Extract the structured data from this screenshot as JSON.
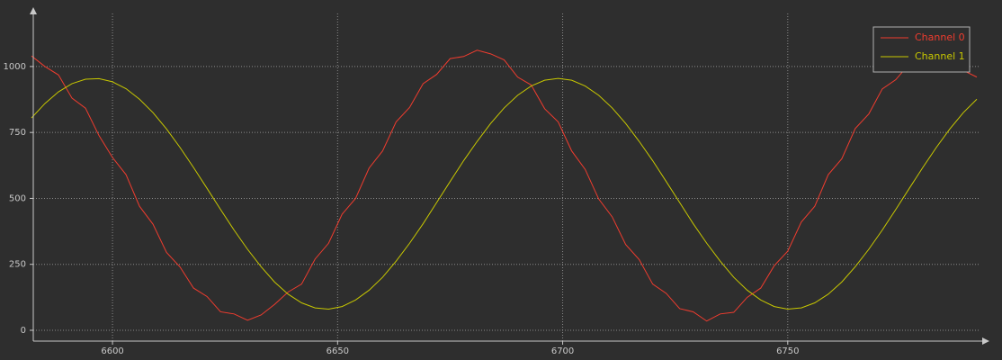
{
  "chart_data": {
    "type": "line",
    "x": [
      6582,
      6585,
      6588,
      6591,
      6594,
      6597,
      6600,
      6603,
      6606,
      6609,
      6612,
      6615,
      6618,
      6621,
      6624,
      6627,
      6630,
      6633,
      6636,
      6639,
      6642,
      6645,
      6648,
      6651,
      6654,
      6657,
      6660,
      6663,
      6666,
      6669,
      6672,
      6675,
      6678,
      6681,
      6684,
      6687,
      6690,
      6693,
      6696,
      6699,
      6702,
      6705,
      6708,
      6711,
      6714,
      6717,
      6720,
      6723,
      6726,
      6729,
      6732,
      6735,
      6738,
      6741,
      6744,
      6747,
      6750,
      6753,
      6756,
      6759,
      6762,
      6765,
      6768,
      6771,
      6774,
      6777,
      6780,
      6783,
      6786,
      6789,
      6792
    ],
    "series": [
      {
        "name": "Channel 0",
        "color": "#f03c2e",
        "values": [
          1040,
          1000,
          968,
          880,
          842,
          738,
          655,
          590,
          470,
          402,
          295,
          240,
          160,
          128,
          70,
          62,
          38,
          58,
          98,
          145,
          175,
          270,
          330,
          440,
          500,
          615,
          680,
          790,
          845,
          935,
          970,
          1030,
          1038,
          1062,
          1048,
          1025,
          960,
          930,
          840,
          790,
          680,
          610,
          498,
          430,
          325,
          268,
          175,
          140,
          82,
          70,
          35,
          62,
          68,
          125,
          160,
          245,
          300,
          410,
          470,
          590,
          650,
          765,
          820,
          915,
          950,
          1010,
          1020,
          1000,
          1008,
          985,
          960
        ]
      },
      {
        "name": "Channel 1",
        "color": "#c8c800",
        "values": [
          805,
          860,
          904,
          935,
          952,
          954,
          942,
          916,
          876,
          825,
          763,
          693,
          617,
          538,
          458,
          380,
          307,
          241,
          183,
          137,
          104,
          85,
          80,
          90,
          115,
          152,
          201,
          262,
          330,
          404,
          484,
          564,
          643,
          716,
          784,
          843,
          891,
          926,
          948,
          955,
          948,
          926,
          891,
          843,
          784,
          716,
          643,
          564,
          484,
          404,
          330,
          262,
          201,
          152,
          115,
          90,
          80,
          85,
          104,
          137,
          183,
          241,
          307,
          380,
          458,
          538,
          617,
          693,
          763,
          825,
          876
        ]
      }
    ],
    "xlim": [
      6582.4,
      6792.4
    ],
    "xticks": [
      6600,
      6650,
      6700,
      6750
    ],
    "ylim": [
      -41,
      1201
    ],
    "yticks": [
      0,
      250,
      500,
      750,
      1000
    ],
    "grid": true,
    "legend": "top-right"
  }
}
